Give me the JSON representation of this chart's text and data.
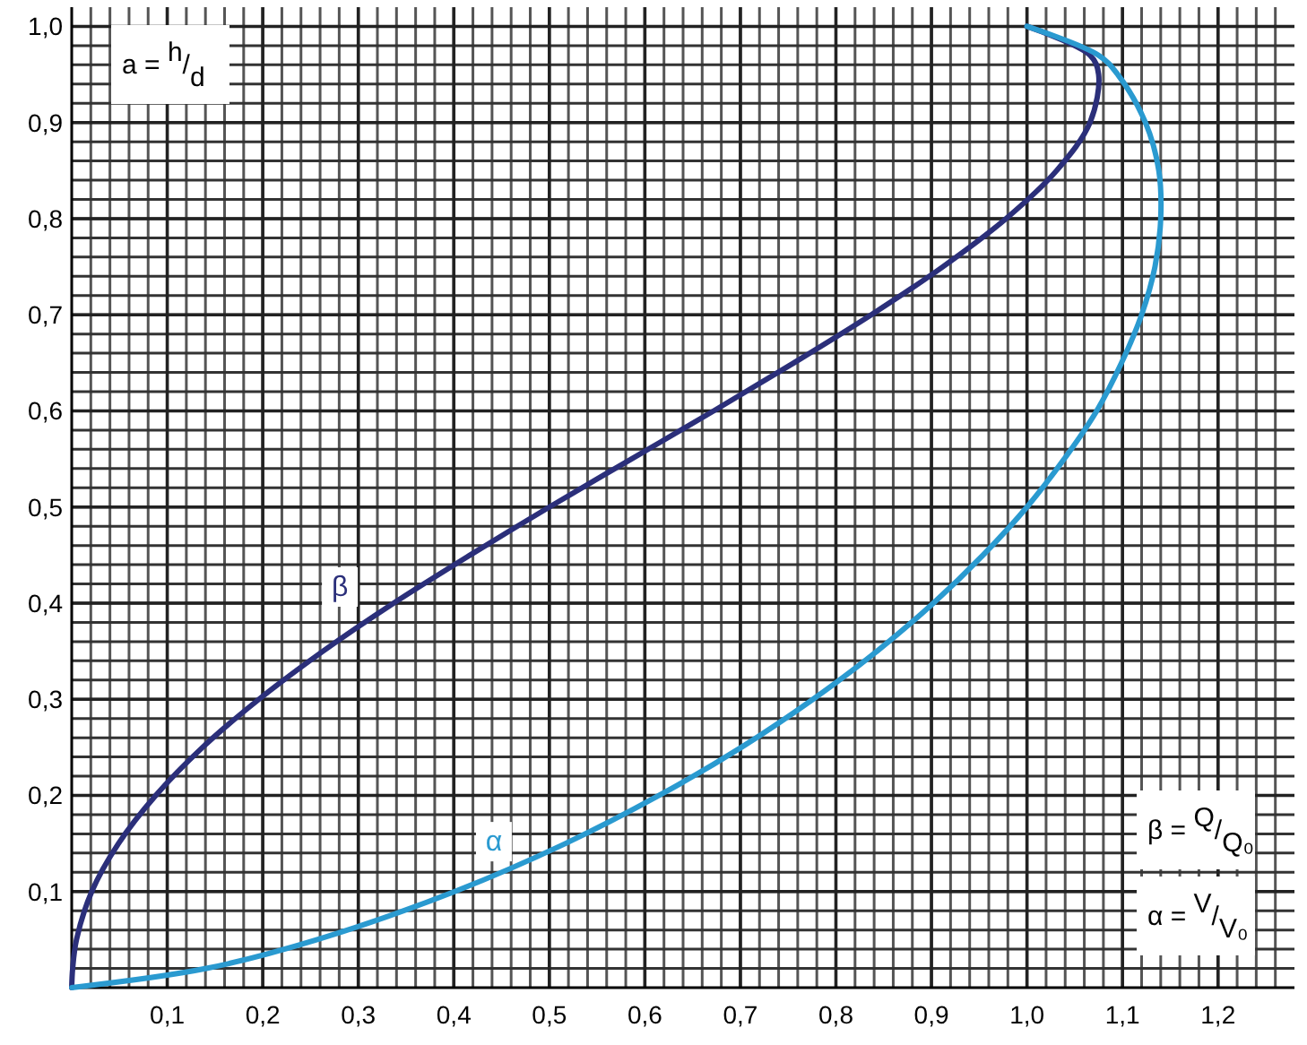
{
  "chart_data": {
    "type": "line",
    "xlim": [
      0,
      1.28
    ],
    "ylim": [
      0,
      1.02
    ],
    "xticks": [
      {
        "value": 0.1,
        "label": "0,1"
      },
      {
        "value": 0.2,
        "label": "0,2"
      },
      {
        "value": 0.3,
        "label": "0,3"
      },
      {
        "value": 0.4,
        "label": "0,4"
      },
      {
        "value": 0.5,
        "label": "0,5"
      },
      {
        "value": 0.6,
        "label": "0,6"
      },
      {
        "value": 0.7,
        "label": "0,7"
      },
      {
        "value": 0.8,
        "label": "0,8"
      },
      {
        "value": 0.9,
        "label": "0,9"
      },
      {
        "value": 1.0,
        "label": "1,0"
      },
      {
        "value": 1.1,
        "label": "1,1"
      },
      {
        "value": 1.2,
        "label": "1,2"
      }
    ],
    "yticks": [
      {
        "value": 0.1,
        "label": "0,1"
      },
      {
        "value": 0.2,
        "label": "0,2"
      },
      {
        "value": 0.3,
        "label": "0,3"
      },
      {
        "value": 0.4,
        "label": "0,4"
      },
      {
        "value": 0.5,
        "label": "0,5"
      },
      {
        "value": 0.6,
        "label": "0,6"
      },
      {
        "value": 0.7,
        "label": "0,7"
      },
      {
        "value": 0.8,
        "label": "0,8"
      },
      {
        "value": 0.9,
        "label": "0,9"
      },
      {
        "value": 1.0,
        "label": "1,0"
      }
    ],
    "grid": true,
    "marker": "none",
    "line_style": "solid",
    "series": [
      {
        "name": "β",
        "color": "#2b2f7a",
        "x": [
          0,
          0.001,
          0.005,
          0.021,
          0.049,
          0.088,
          0.137,
          0.196,
          0.263,
          0.337,
          0.417,
          0.5,
          0.586,
          0.672,
          0.756,
          0.837,
          0.912,
          0.978,
          1.031,
          1.066,
          1.075,
          1.066,
          1
        ],
        "values": [
          0,
          0.02,
          0.05,
          0.1,
          0.15,
          0.2,
          0.25,
          0.3,
          0.35,
          0.4,
          0.45,
          0.5,
          0.55,
          0.6,
          0.65,
          0.7,
          0.75,
          0.8,
          0.85,
          0.9,
          0.95,
          0.97,
          1
        ]
      },
      {
        "name": "α",
        "color": "#2a9ad0",
        "x": [
          0,
          0.141,
          0.257,
          0.401,
          0.517,
          0.615,
          0.701,
          0.776,
          0.843,
          0.902,
          0.954,
          1,
          1.039,
          1.073,
          1.099,
          1.12,
          1.134,
          1.14,
          1.138,
          1.124,
          1.095,
          1.075,
          1
        ],
        "values": [
          0,
          0.02,
          0.05,
          0.1,
          0.15,
          0.2,
          0.25,
          0.3,
          0.35,
          0.4,
          0.45,
          0.5,
          0.55,
          0.6,
          0.65,
          0.7,
          0.75,
          0.8,
          0.85,
          0.9,
          0.95,
          0.97,
          1
        ]
      }
    ],
    "annotations": [
      "a = h/d",
      "β = Q/Q₀",
      "α = V/V₀"
    ]
  }
}
